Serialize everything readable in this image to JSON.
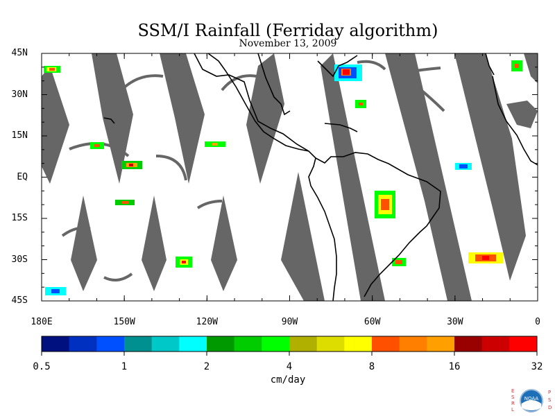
{
  "title": "SSM/I Rainfall (Ferriday algorithm)",
  "subtitle": "November 13, 2009",
  "colors": {
    "swath_gap": "#666666",
    "coast": "#000000",
    "background": "#ffffff"
  },
  "map": {
    "lon_range": [
      -180,
      0
    ],
    "lat_range": [
      -45,
      45
    ],
    "y_ticks": [
      {
        "lat": 45,
        "label": "45N"
      },
      {
        "lat": 30,
        "label": "30N"
      },
      {
        "lat": 15,
        "label": "15N"
      },
      {
        "lat": 0,
        "label": "EQ"
      },
      {
        "lat": -15,
        "label": "15S"
      },
      {
        "lat": -30,
        "label": "30S"
      },
      {
        "lat": -45,
        "label": "45S"
      }
    ],
    "x_ticks": [
      {
        "lon": -180,
        "label": "180E"
      },
      {
        "lon": -150,
        "label": "150W"
      },
      {
        "lon": -120,
        "label": "120W"
      },
      {
        "lon": -90,
        "label": "90W"
      },
      {
        "lon": -60,
        "label": "60W"
      },
      {
        "lon": -30,
        "label": "30W"
      },
      {
        "lon": 0,
        "label": "0"
      }
    ]
  },
  "colorbar": {
    "units": "cm/day",
    "colors": [
      "#00107f",
      "#0030c0",
      "#0050ff",
      "#009090",
      "#00c8c8",
      "#00ffff",
      "#009900",
      "#00cc00",
      "#00ff00",
      "#b0b000",
      "#dddd00",
      "#ffff00",
      "#ff5000",
      "#ff8000",
      "#ffa000",
      "#990000",
      "#cc0000",
      "#ff0000"
    ],
    "labels": [
      "0.5",
      "1",
      "2",
      "4",
      "8",
      "16",
      "32"
    ]
  },
  "logo": {
    "left_letters": "ESRL",
    "right_letters": "PSD",
    "center_text": "NOAA"
  }
}
